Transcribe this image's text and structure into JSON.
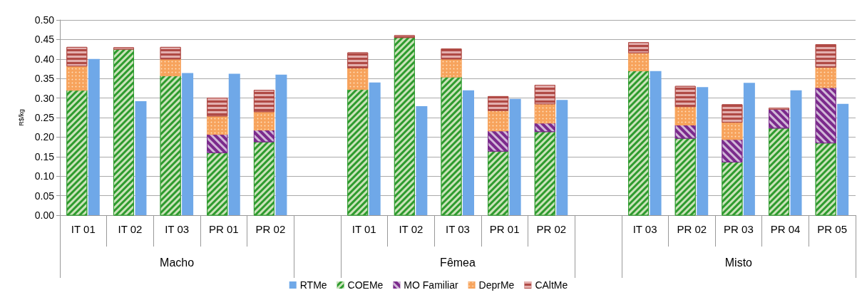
{
  "chart_data": {
    "type": "bar",
    "ylabel": "R$/kg",
    "ylim": [
      0,
      0.5
    ],
    "yticks": [
      {
        "value": 0,
        "label": "0.00"
      },
      {
        "value": 0.05,
        "label": "0.05"
      },
      {
        "value": 0.1,
        "label": "0.10"
      },
      {
        "value": 0.15,
        "label": "0.15"
      },
      {
        "value": 0.2,
        "label": "0.20"
      },
      {
        "value": 0.25,
        "label": "0.25"
      },
      {
        "value": 0.3,
        "label": "0.30"
      },
      {
        "value": 0.35,
        "label": "0.35"
      },
      {
        "value": 0.4,
        "label": "0.40"
      },
      {
        "value": 0.45,
        "label": "0.45"
      },
      {
        "value": 0.5,
        "label": "0.50"
      }
    ],
    "grid": "y",
    "legend": "bottom",
    "categories": [
      "IT 01",
      "IT 02",
      "IT 03",
      "PR 01",
      "PR 02",
      null,
      "IT 01",
      "IT 02",
      "IT 03",
      "PR 01",
      "PR 02",
      null,
      "IT 03",
      "PR 02",
      "PR 03",
      "PR 04",
      "PR 05"
    ],
    "annotations": [
      "Macho",
      "Fêmea",
      "Misto"
    ],
    "series": [
      {
        "name": "RTMe",
        "color": "#6fa8e8",
        "values": [
          0.4,
          0.292,
          0.364,
          0.362,
          0.36,
          null,
          0.34,
          0.279,
          0.32,
          0.298,
          0.295,
          null,
          0.369,
          0.328,
          0.339,
          0.32,
          0.285
        ]
      },
      {
        "name": "COEMe",
        "color": "#2e9b2e",
        "base": [
          0,
          0,
          0,
          0,
          0,
          null,
          0,
          0,
          0,
          0,
          0,
          null,
          0,
          0,
          0,
          0,
          0
        ],
        "values": [
          0.32,
          0.425,
          0.357,
          0.16,
          0.188,
          null,
          0.322,
          0.455,
          0.354,
          0.164,
          0.214,
          null,
          0.37,
          0.197,
          0.136,
          0.223,
          0.185
        ]
      },
      {
        "name": "MO Familiar",
        "color": "#7b2a8c",
        "base": [
          null,
          null,
          null,
          0.16,
          0.188,
          null,
          null,
          null,
          null,
          0.164,
          0.214,
          null,
          null,
          0.197,
          0.136,
          0.223,
          0.185
        ],
        "values": [
          null,
          null,
          null,
          0.047,
          0.03,
          null,
          null,
          null,
          null,
          0.052,
          0.022,
          null,
          null,
          0.034,
          0.058,
          0.048,
          0.142
        ]
      },
      {
        "name": "DeprMe",
        "color": "#f7a35c",
        "base": [
          0.32,
          null,
          0.357,
          0.207,
          0.218,
          null,
          0.322,
          null,
          0.354,
          0.216,
          0.236,
          null,
          0.37,
          0.231,
          0.194,
          null,
          0.327
        ],
        "values": [
          0.062,
          null,
          0.043,
          0.047,
          0.047,
          null,
          0.055,
          null,
          0.046,
          0.052,
          0.049,
          null,
          0.046,
          0.047,
          0.044,
          null,
          0.052
        ]
      },
      {
        "name": "CAltMe",
        "color": "#b04a45",
        "base": [
          0.382,
          0.425,
          0.4,
          0.254,
          0.265,
          null,
          0.377,
          0.455,
          0.4,
          0.268,
          0.285,
          null,
          0.416,
          0.278,
          0.238,
          0.271,
          0.379
        ],
        "values": [
          0.048,
          0.004,
          0.03,
          0.046,
          0.055,
          null,
          0.039,
          0.005,
          0.026,
          0.036,
          0.048,
          null,
          0.026,
          0.052,
          0.045,
          0.003,
          0.058
        ]
      }
    ]
  }
}
